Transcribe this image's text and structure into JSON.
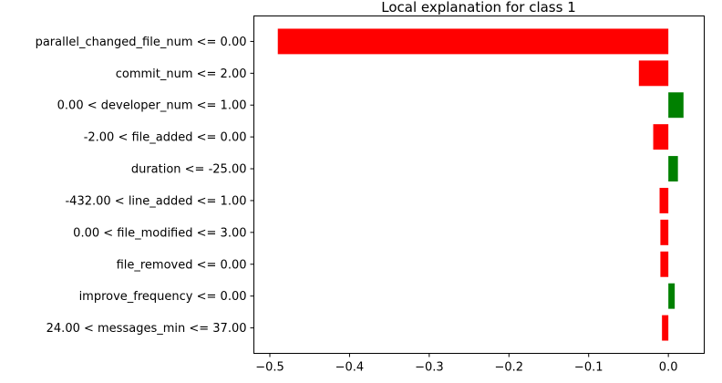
{
  "chart_data": {
    "type": "bar",
    "orientation": "horizontal",
    "title": "Local explanation for class 1",
    "xlabel": "",
    "ylabel": "",
    "categories": [
      "parallel_changed_file_num <= 0.00",
      "commit_num <= 2.00",
      "0.00 < developer_num <= 1.00",
      "-2.00 < file_added <= 0.00",
      "duration <= -25.00",
      "-432.00 < line_added <= 1.00",
      "0.00 < file_modified <= 3.00",
      "file_removed <= 0.00",
      "improve_frequency <= 0.00",
      "24.00 < messages_min <= 37.00"
    ],
    "values": [
      -0.49,
      -0.037,
      0.019,
      -0.019,
      0.012,
      -0.011,
      -0.01,
      -0.01,
      0.008,
      -0.008
    ],
    "xlim": [
      -0.52,
      0.045
    ],
    "xticks": [
      -0.5,
      -0.4,
      -0.3,
      -0.2,
      -0.1,
      0.0
    ],
    "xtick_labels": [
      "−0.5",
      "−0.4",
      "−0.3",
      "−0.2",
      "−0.1",
      "0.0"
    ],
    "positive_color": "#008000",
    "negative_color": "#ff0000",
    "grid": false,
    "legend": "none"
  }
}
